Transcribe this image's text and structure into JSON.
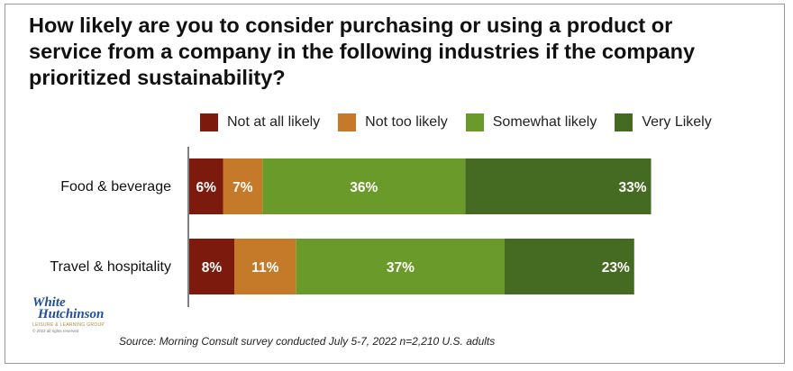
{
  "title": "How likely are you to consider purchasing or using a product or service from a company in the following industries if the company prioritized sustainability?",
  "source": "Source: Morning Consult survey conducted July 5-7, 2022 n=2,210 U.S. adults",
  "logo": {
    "line1": "White",
    "line2": "Hutchinson",
    "tagline": "LEISURE & LEARNING GROUP",
    "copyright": "© 2022 all rights reserved"
  },
  "chart_data": {
    "type": "bar",
    "orientation": "horizontal-stacked",
    "title": "How likely are you to consider purchasing or using a product or service from a company in the following industries if the company prioritized sustainability?",
    "categories": [
      "Food & beverage",
      "Travel & hospitality"
    ],
    "series": [
      {
        "name": "Not at all likely",
        "color": "#7b1a0d",
        "values": [
          6,
          8
        ],
        "labels": [
          "6%",
          "8%"
        ]
      },
      {
        "name": "Not too likely",
        "color": "#c57a2a",
        "values": [
          7,
          11
        ],
        "labels": [
          "7%",
          "11%"
        ]
      },
      {
        "name": "Somewhat likely",
        "color": "#6a9a2a",
        "values": [
          36,
          37
        ],
        "labels": [
          "36%",
          "37%"
        ]
      },
      {
        "name": "Very Likely",
        "color": "#456a21",
        "values": [
          33,
          23
        ],
        "labels": [
          "33%",
          "23%"
        ]
      }
    ],
    "legend_position": "top",
    "grid": false
  }
}
